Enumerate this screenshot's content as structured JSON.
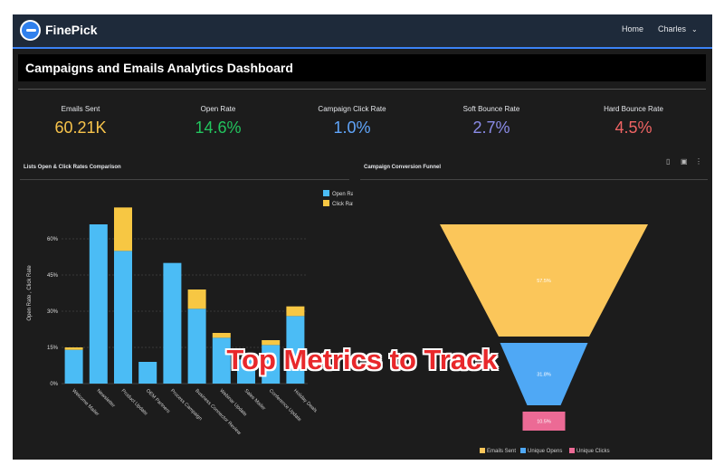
{
  "nav": {
    "brand": "FinePick",
    "home_label": "Home",
    "user_label": "Charles"
  },
  "dashboard": {
    "title": "Campaigns and Emails Analytics Dashboard"
  },
  "kpis": [
    {
      "label": "Emails Sent",
      "value": "60.21K",
      "color": "#f7c34b"
    },
    {
      "label": "Open Rate",
      "value": "14.6%",
      "color": "#22c55e"
    },
    {
      "label": "Campaign Click Rate",
      "value": "1.0%",
      "color": "#60a5fa"
    },
    {
      "label": "Soft Bounce Rate",
      "value": "2.7%",
      "color": "#8b8ce8"
    },
    {
      "label": "Hard Bounce Rate",
      "value": "4.5%",
      "color": "#f06464"
    }
  ],
  "bar_panel": {
    "title": "Lists Open & Click Rates Comparison"
  },
  "funnel_panel": {
    "title": "Campaign Conversion Funnel"
  },
  "overlay_caption": "Top Metrics to Track",
  "chart_data": [
    {
      "type": "bar",
      "stacked": true,
      "title": "Lists Open & Click Rates Comparison",
      "ylabel": "Open Rate , Click Rate",
      "xlabel": "",
      "ylim": [
        0,
        75
      ],
      "yticks": [
        "0%",
        "15%",
        "30%",
        "45%",
        "60%"
      ],
      "ytick_values": [
        0,
        15,
        30,
        45,
        60
      ],
      "grid": true,
      "legend": "top-right",
      "categories": [
        "Welcome Mailer",
        "Newsletter",
        "Product Update",
        "OEM Partners",
        "Process Campaign",
        "Business Connector Review",
        "Webinar Update",
        "Sales Mailer",
        "Conference Update",
        "Holiday Deals"
      ],
      "series": [
        {
          "name": "Open Rate",
          "color": "#4bbcf5",
          "values": [
            14,
            66,
            55,
            9,
            50,
            31,
            19,
            10,
            16,
            28
          ]
        },
        {
          "name": "Click Rate",
          "color": "#f7c743",
          "values": [
            1,
            0,
            18,
            0,
            0,
            8,
            2,
            0,
            2,
            4
          ]
        }
      ]
    },
    {
      "type": "funnel",
      "title": "Campaign Conversion Funnel",
      "legend": "bottom",
      "categories": [
        "Emails Sent",
        "Unique Opens",
        "Unique Clicks"
      ],
      "values": [
        "57.5%",
        "31.8%",
        "10.5%"
      ],
      "colors": [
        "#fbc65a",
        "#4fa8f5",
        "#ec6a95"
      ]
    }
  ]
}
